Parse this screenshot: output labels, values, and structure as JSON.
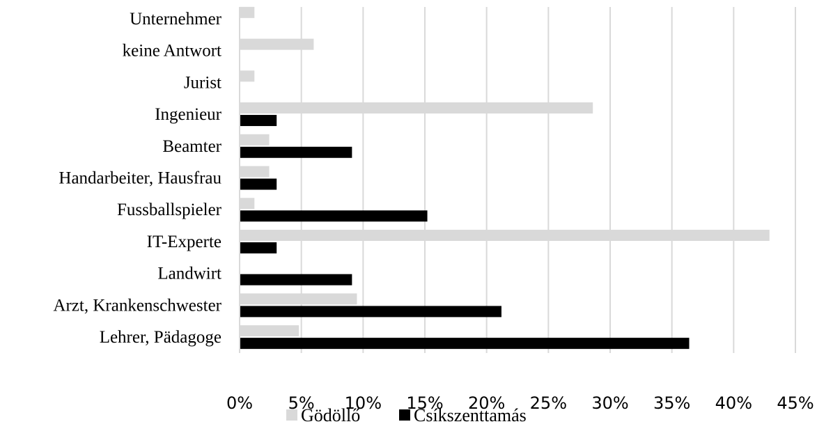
{
  "chart_data": {
    "type": "bar",
    "orientation": "horizontal",
    "categories": [
      "Lehrer, Pädagoge",
      "Arzt, Krankenschwester",
      "Landwirt",
      "IT-Experte",
      "Fussballspieler",
      "Handarbeiter, Hausfrau",
      "Beamter",
      "Ingenieur",
      "Jurist",
      "keine Antwort",
      "Unternehmer"
    ],
    "series": [
      {
        "name": "Gödöllő",
        "color": "#d9d9d9",
        "values": [
          4.8,
          9.5,
          0,
          42.9,
          1.2,
          2.4,
          2.4,
          28.6,
          1.2,
          6.0,
          1.2
        ]
      },
      {
        "name": "Csíkszenttamás",
        "color": "#000000",
        "values": [
          36.4,
          21.2,
          9.1,
          3.0,
          15.2,
          3.0,
          9.1,
          3.0,
          0,
          0,
          0
        ]
      }
    ],
    "xlim": [
      0,
      45
    ],
    "xticks": [
      "0%",
      "5%",
      "10%",
      "15%",
      "20%",
      "25%",
      "30%",
      "35%",
      "40%",
      "45%"
    ],
    "x_tick_values": [
      0,
      5,
      10,
      15,
      20,
      25,
      30,
      35,
      40,
      45
    ],
    "grid": true,
    "legend_position": "bottom",
    "title": "",
    "xlabel": "",
    "ylabel": ""
  }
}
